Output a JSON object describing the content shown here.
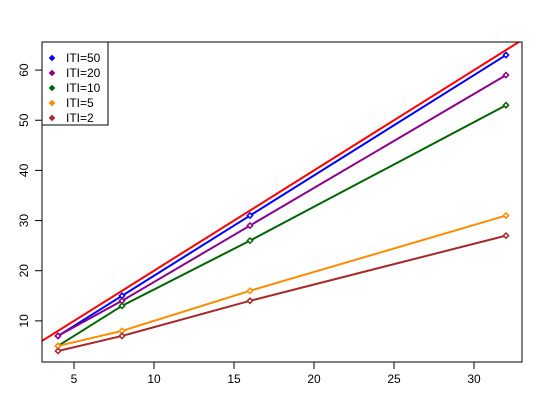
{
  "chart_data": {
    "type": "line",
    "title": "",
    "xlabel": "",
    "ylabel": "",
    "xlim": [
      3,
      33
    ],
    "ylim": [
      1.8,
      65.6
    ],
    "xticks": [
      "5",
      "10",
      "15",
      "20",
      "25",
      "30"
    ],
    "yticks": [
      "10",
      "20",
      "30",
      "40",
      "50",
      "60"
    ],
    "x": [
      4,
      8,
      16,
      32
    ],
    "series": [
      {
        "name": "ITI=50",
        "color": "#0000ff",
        "values": [
          7,
          15,
          31,
          63
        ]
      },
      {
        "name": "ITI=20",
        "color": "#8b008b",
        "values": [
          7,
          14,
          29,
          59
        ]
      },
      {
        "name": "ITI=10",
        "color": "#006400",
        "values": [
          5,
          13,
          26,
          53
        ]
      },
      {
        "name": "ITI=5",
        "color": "#ff8c00",
        "values": [
          5,
          8,
          16,
          31
        ]
      },
      {
        "name": "ITI=2",
        "color": "#a52a2a",
        "values": [
          4,
          7,
          14,
          27
        ]
      }
    ],
    "reference_line": {
      "slope": 2,
      "intercept": 0,
      "color": "#ff0000"
    },
    "legend_position": "top-left",
    "grid": false
  }
}
